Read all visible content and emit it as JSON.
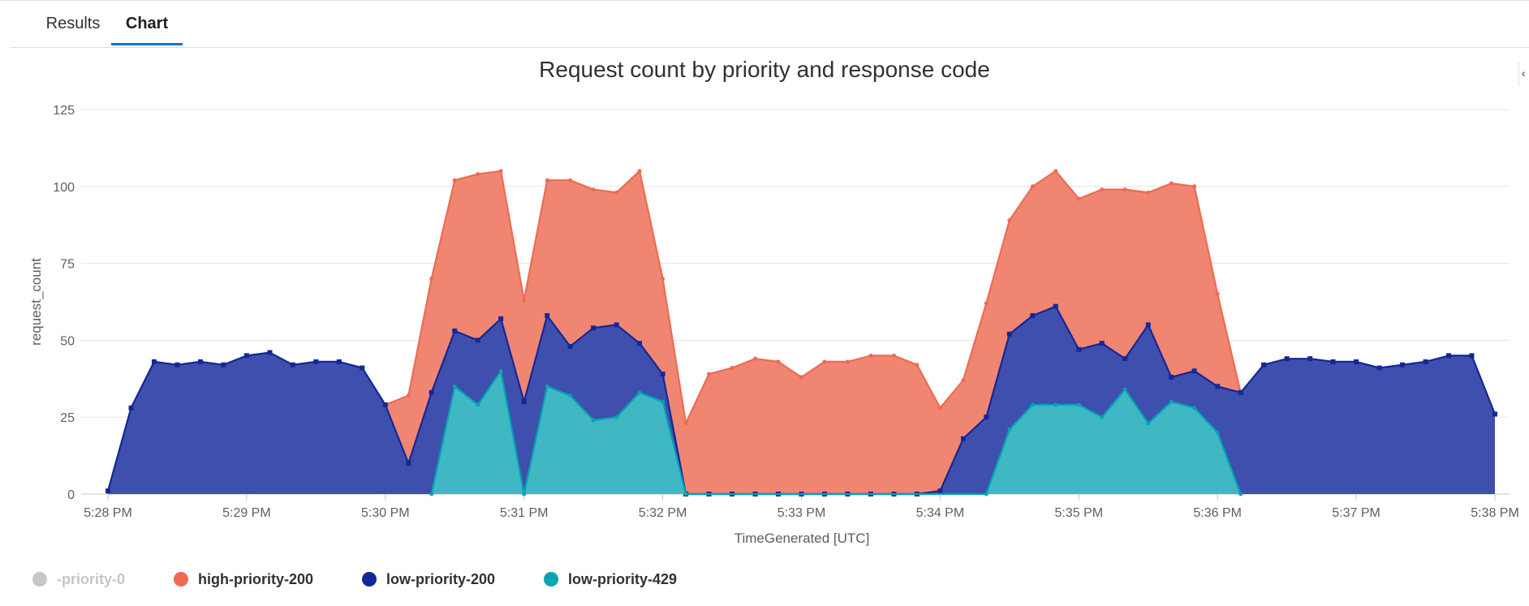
{
  "tabs": [
    {
      "label": "Results",
      "active": false
    },
    {
      "label": "Chart",
      "active": true
    }
  ],
  "collapse_icon": "chevron-left-icon",
  "chart_data": {
    "type": "area",
    "title": "Request count by priority and response code",
    "xlabel": "TimeGenerated [UTC]",
    "ylabel": "request_count",
    "ylim": [
      0,
      125
    ],
    "yticks": [
      "0",
      "25",
      "50",
      "75",
      "100",
      "125"
    ],
    "xticks": [
      "5:28 PM",
      "5:29 PM",
      "5:30 PM",
      "5:31 PM",
      "5:32 PM",
      "5:33 PM",
      "5:34 PM",
      "5:35 PM",
      "5:36 PM",
      "5:37 PM",
      "5:38 PM"
    ],
    "x_unit": "minutes from 5:28 PM",
    "x_range": [
      0,
      10
    ],
    "grid": true,
    "legend_position": "bottom-left",
    "stacked": false,
    "series": [
      {
        "name": "-priority-0",
        "color": "#c8c6c4",
        "hidden": true,
        "x": [],
        "y": []
      },
      {
        "name": "high-priority-200",
        "color": "#ee6a52",
        "fill": "#f08672",
        "marker": "circle",
        "x": [
          2.0,
          2.167,
          2.333,
          2.5,
          2.667,
          2.833,
          3.0,
          3.167,
          3.333,
          3.5,
          3.667,
          3.833,
          4.0,
          4.167,
          4.333,
          4.5,
          4.667,
          4.833,
          5.0,
          5.167,
          5.333,
          5.5,
          5.667,
          5.833,
          6.0,
          6.167,
          6.333,
          6.5,
          6.667,
          6.833,
          7.0,
          7.167,
          7.333,
          7.5,
          7.667,
          7.833,
          8.0,
          8.167
        ],
        "y": [
          29,
          32,
          70,
          102,
          104,
          105,
          63,
          102,
          102,
          99,
          98,
          105,
          70,
          23,
          39,
          41,
          44,
          43,
          38,
          43,
          43,
          45,
          45,
          42,
          28,
          37,
          62,
          89,
          100,
          105,
          96,
          99,
          99,
          98,
          101,
          100,
          65,
          33
        ]
      },
      {
        "name": "low-priority-200",
        "color": "#142797",
        "fill": "#3f4fad",
        "marker": "square",
        "x": [
          0.0,
          0.167,
          0.333,
          0.5,
          0.667,
          0.833,
          1.0,
          1.167,
          1.333,
          1.5,
          1.667,
          1.833,
          2.0,
          2.167,
          2.333,
          2.5,
          2.667,
          2.833,
          3.0,
          3.167,
          3.333,
          3.5,
          3.667,
          3.833,
          4.0,
          4.167,
          4.333,
          4.5,
          4.667,
          4.833,
          5.0,
          5.167,
          5.333,
          5.5,
          5.667,
          5.833,
          6.0,
          6.167,
          6.333,
          6.5,
          6.667,
          6.833,
          7.0,
          7.167,
          7.333,
          7.5,
          7.667,
          7.833,
          8.0,
          8.167,
          8.333,
          8.5,
          8.667,
          8.833,
          9.0,
          9.167,
          9.333,
          9.5,
          9.667,
          9.833,
          10.0
        ],
        "y": [
          1,
          28,
          43,
          42,
          43,
          42,
          45,
          46,
          42,
          43,
          43,
          41,
          29,
          10,
          33,
          53,
          50,
          57,
          30,
          58,
          48,
          54,
          55,
          49,
          39,
          0,
          0,
          0,
          0,
          0,
          0,
          0,
          0,
          0,
          0,
          0,
          1,
          18,
          25,
          52,
          58,
          61,
          47,
          49,
          44,
          55,
          38,
          40,
          35,
          33,
          42,
          44,
          44,
          43,
          43,
          41,
          42,
          43,
          45,
          45,
          26
        ]
      },
      {
        "name": "low-priority-429",
        "color": "#00a4b4",
        "fill": "#3fb8c3",
        "marker": "circle",
        "x": [
          2.333,
          2.5,
          2.667,
          2.833,
          3.0,
          3.167,
          3.333,
          3.5,
          3.667,
          3.833,
          4.0,
          4.167,
          6.333,
          6.5,
          6.667,
          6.833,
          7.0,
          7.167,
          7.333,
          7.5,
          7.667,
          7.833,
          8.0,
          8.167
        ],
        "y": [
          0,
          35,
          29,
          40,
          0,
          35,
          32,
          24,
          25,
          33,
          30,
          0,
          0,
          21,
          29,
          29,
          29,
          25,
          34,
          23,
          30,
          28,
          20,
          0
        ]
      }
    ]
  }
}
